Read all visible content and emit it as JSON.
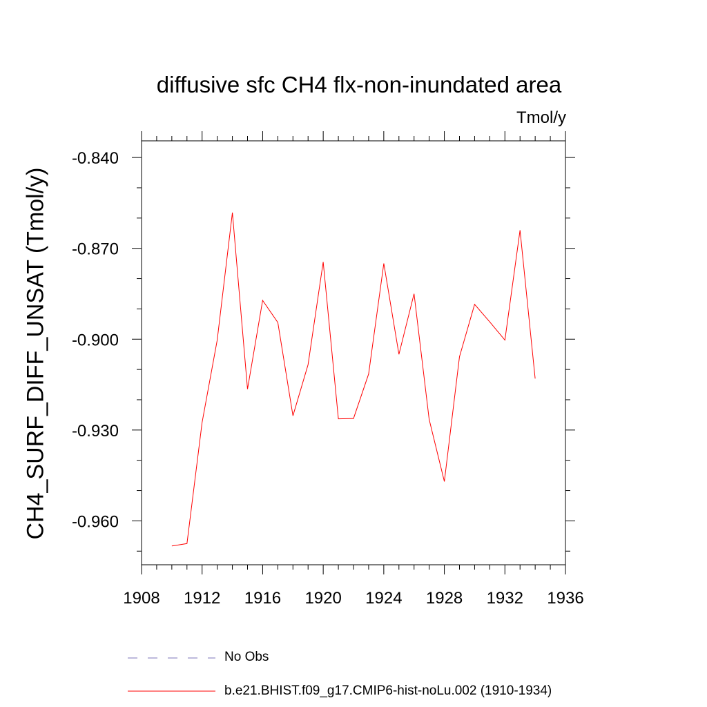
{
  "chart_data": {
    "type": "line",
    "title": "diffusive sfc CH4 flx-non-inundated area",
    "units_label": "Tmol/y",
    "ylabel": "CH4_SURF_DIFF_UNSAT  (Tmol/y)",
    "xlabel": "",
    "xlim": [
      1908,
      1936
    ],
    "ylim": [
      -0.9745,
      -0.8345
    ],
    "x_ticks": [
      1908,
      1912,
      1916,
      1920,
      1924,
      1928,
      1932,
      1936
    ],
    "y_ticks": [
      -0.84,
      -0.87,
      -0.9,
      -0.93,
      -0.96
    ],
    "y_tick_labels": [
      "-0.840",
      "-0.870",
      "-0.900",
      "-0.930",
      "-0.960"
    ],
    "grid": false,
    "legend_placement": "bottom",
    "series": [
      {
        "name": "b.e21.BHIST.f09_g17.CMIP6-hist-noLu.002 (1910-1934)",
        "color": "#ff0000",
        "style": "solid",
        "x": [
          1910,
          1911,
          1912,
          1913,
          1914,
          1915,
          1916,
          1917,
          1918,
          1919,
          1920,
          1921,
          1922,
          1923,
          1924,
          1925,
          1926,
          1927,
          1928,
          1929,
          1930,
          1931,
          1932,
          1933,
          1934
        ],
        "values": [
          -0.9683,
          -0.9675,
          -0.9275,
          -0.9003,
          -0.8582,
          -0.9165,
          -0.8872,
          -0.8945,
          -0.9253,
          -0.9084,
          -0.8745,
          -0.9263,
          -0.9262,
          -0.9115,
          -0.875,
          -0.905,
          -0.885,
          -0.9265,
          -0.947,
          -0.9058,
          -0.8885,
          -0.8943,
          -0.9003,
          -0.864,
          -0.913
        ]
      },
      {
        "name": "No Obs",
        "color": "#7b73b8",
        "style": "dashed",
        "x": [],
        "values": []
      }
    ]
  }
}
